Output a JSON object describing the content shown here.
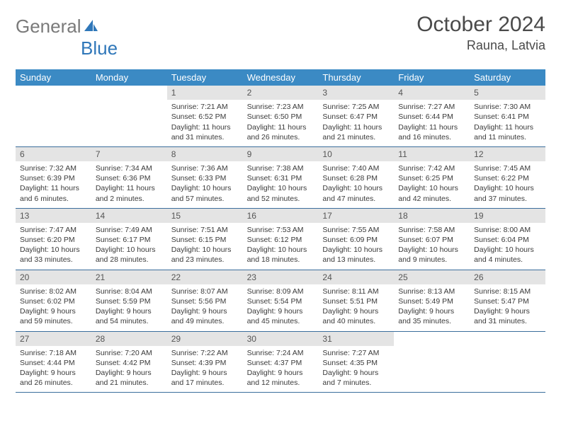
{
  "logo": {
    "text1": "General",
    "text2": "Blue"
  },
  "title": "October 2024",
  "location": "Rauna, Latvia",
  "header_bg": "#3b8ac4",
  "header_fg": "#ffffff",
  "daynum_bg": "#e4e4e4",
  "border_color": "#3b6e9c",
  "dayNames": [
    "Sunday",
    "Monday",
    "Tuesday",
    "Wednesday",
    "Thursday",
    "Friday",
    "Saturday"
  ],
  "weeks": [
    [
      null,
      null,
      {
        "n": "1",
        "sr": "7:21 AM",
        "ss": "6:52 PM",
        "dl": "11 hours and 31 minutes."
      },
      {
        "n": "2",
        "sr": "7:23 AM",
        "ss": "6:50 PM",
        "dl": "11 hours and 26 minutes."
      },
      {
        "n": "3",
        "sr": "7:25 AM",
        "ss": "6:47 PM",
        "dl": "11 hours and 21 minutes."
      },
      {
        "n": "4",
        "sr": "7:27 AM",
        "ss": "6:44 PM",
        "dl": "11 hours and 16 minutes."
      },
      {
        "n": "5",
        "sr": "7:30 AM",
        "ss": "6:41 PM",
        "dl": "11 hours and 11 minutes."
      }
    ],
    [
      {
        "n": "6",
        "sr": "7:32 AM",
        "ss": "6:39 PM",
        "dl": "11 hours and 6 minutes."
      },
      {
        "n": "7",
        "sr": "7:34 AM",
        "ss": "6:36 PM",
        "dl": "11 hours and 2 minutes."
      },
      {
        "n": "8",
        "sr": "7:36 AM",
        "ss": "6:33 PM",
        "dl": "10 hours and 57 minutes."
      },
      {
        "n": "9",
        "sr": "7:38 AM",
        "ss": "6:31 PM",
        "dl": "10 hours and 52 minutes."
      },
      {
        "n": "10",
        "sr": "7:40 AM",
        "ss": "6:28 PM",
        "dl": "10 hours and 47 minutes."
      },
      {
        "n": "11",
        "sr": "7:42 AM",
        "ss": "6:25 PM",
        "dl": "10 hours and 42 minutes."
      },
      {
        "n": "12",
        "sr": "7:45 AM",
        "ss": "6:22 PM",
        "dl": "10 hours and 37 minutes."
      }
    ],
    [
      {
        "n": "13",
        "sr": "7:47 AM",
        "ss": "6:20 PM",
        "dl": "10 hours and 33 minutes."
      },
      {
        "n": "14",
        "sr": "7:49 AM",
        "ss": "6:17 PM",
        "dl": "10 hours and 28 minutes."
      },
      {
        "n": "15",
        "sr": "7:51 AM",
        "ss": "6:15 PM",
        "dl": "10 hours and 23 minutes."
      },
      {
        "n": "16",
        "sr": "7:53 AM",
        "ss": "6:12 PM",
        "dl": "10 hours and 18 minutes."
      },
      {
        "n": "17",
        "sr": "7:55 AM",
        "ss": "6:09 PM",
        "dl": "10 hours and 13 minutes."
      },
      {
        "n": "18",
        "sr": "7:58 AM",
        "ss": "6:07 PM",
        "dl": "10 hours and 9 minutes."
      },
      {
        "n": "19",
        "sr": "8:00 AM",
        "ss": "6:04 PM",
        "dl": "10 hours and 4 minutes."
      }
    ],
    [
      {
        "n": "20",
        "sr": "8:02 AM",
        "ss": "6:02 PM",
        "dl": "9 hours and 59 minutes."
      },
      {
        "n": "21",
        "sr": "8:04 AM",
        "ss": "5:59 PM",
        "dl": "9 hours and 54 minutes."
      },
      {
        "n": "22",
        "sr": "8:07 AM",
        "ss": "5:56 PM",
        "dl": "9 hours and 49 minutes."
      },
      {
        "n": "23",
        "sr": "8:09 AM",
        "ss": "5:54 PM",
        "dl": "9 hours and 45 minutes."
      },
      {
        "n": "24",
        "sr": "8:11 AM",
        "ss": "5:51 PM",
        "dl": "9 hours and 40 minutes."
      },
      {
        "n": "25",
        "sr": "8:13 AM",
        "ss": "5:49 PM",
        "dl": "9 hours and 35 minutes."
      },
      {
        "n": "26",
        "sr": "8:15 AM",
        "ss": "5:47 PM",
        "dl": "9 hours and 31 minutes."
      }
    ],
    [
      {
        "n": "27",
        "sr": "7:18 AM",
        "ss": "4:44 PM",
        "dl": "9 hours and 26 minutes."
      },
      {
        "n": "28",
        "sr": "7:20 AM",
        "ss": "4:42 PM",
        "dl": "9 hours and 21 minutes."
      },
      {
        "n": "29",
        "sr": "7:22 AM",
        "ss": "4:39 PM",
        "dl": "9 hours and 17 minutes."
      },
      {
        "n": "30",
        "sr": "7:24 AM",
        "ss": "4:37 PM",
        "dl": "9 hours and 12 minutes."
      },
      {
        "n": "31",
        "sr": "7:27 AM",
        "ss": "4:35 PM",
        "dl": "9 hours and 7 minutes."
      },
      null,
      null
    ]
  ],
  "labels": {
    "sunrise": "Sunrise:",
    "sunset": "Sunset:",
    "daylight": "Daylight:"
  }
}
